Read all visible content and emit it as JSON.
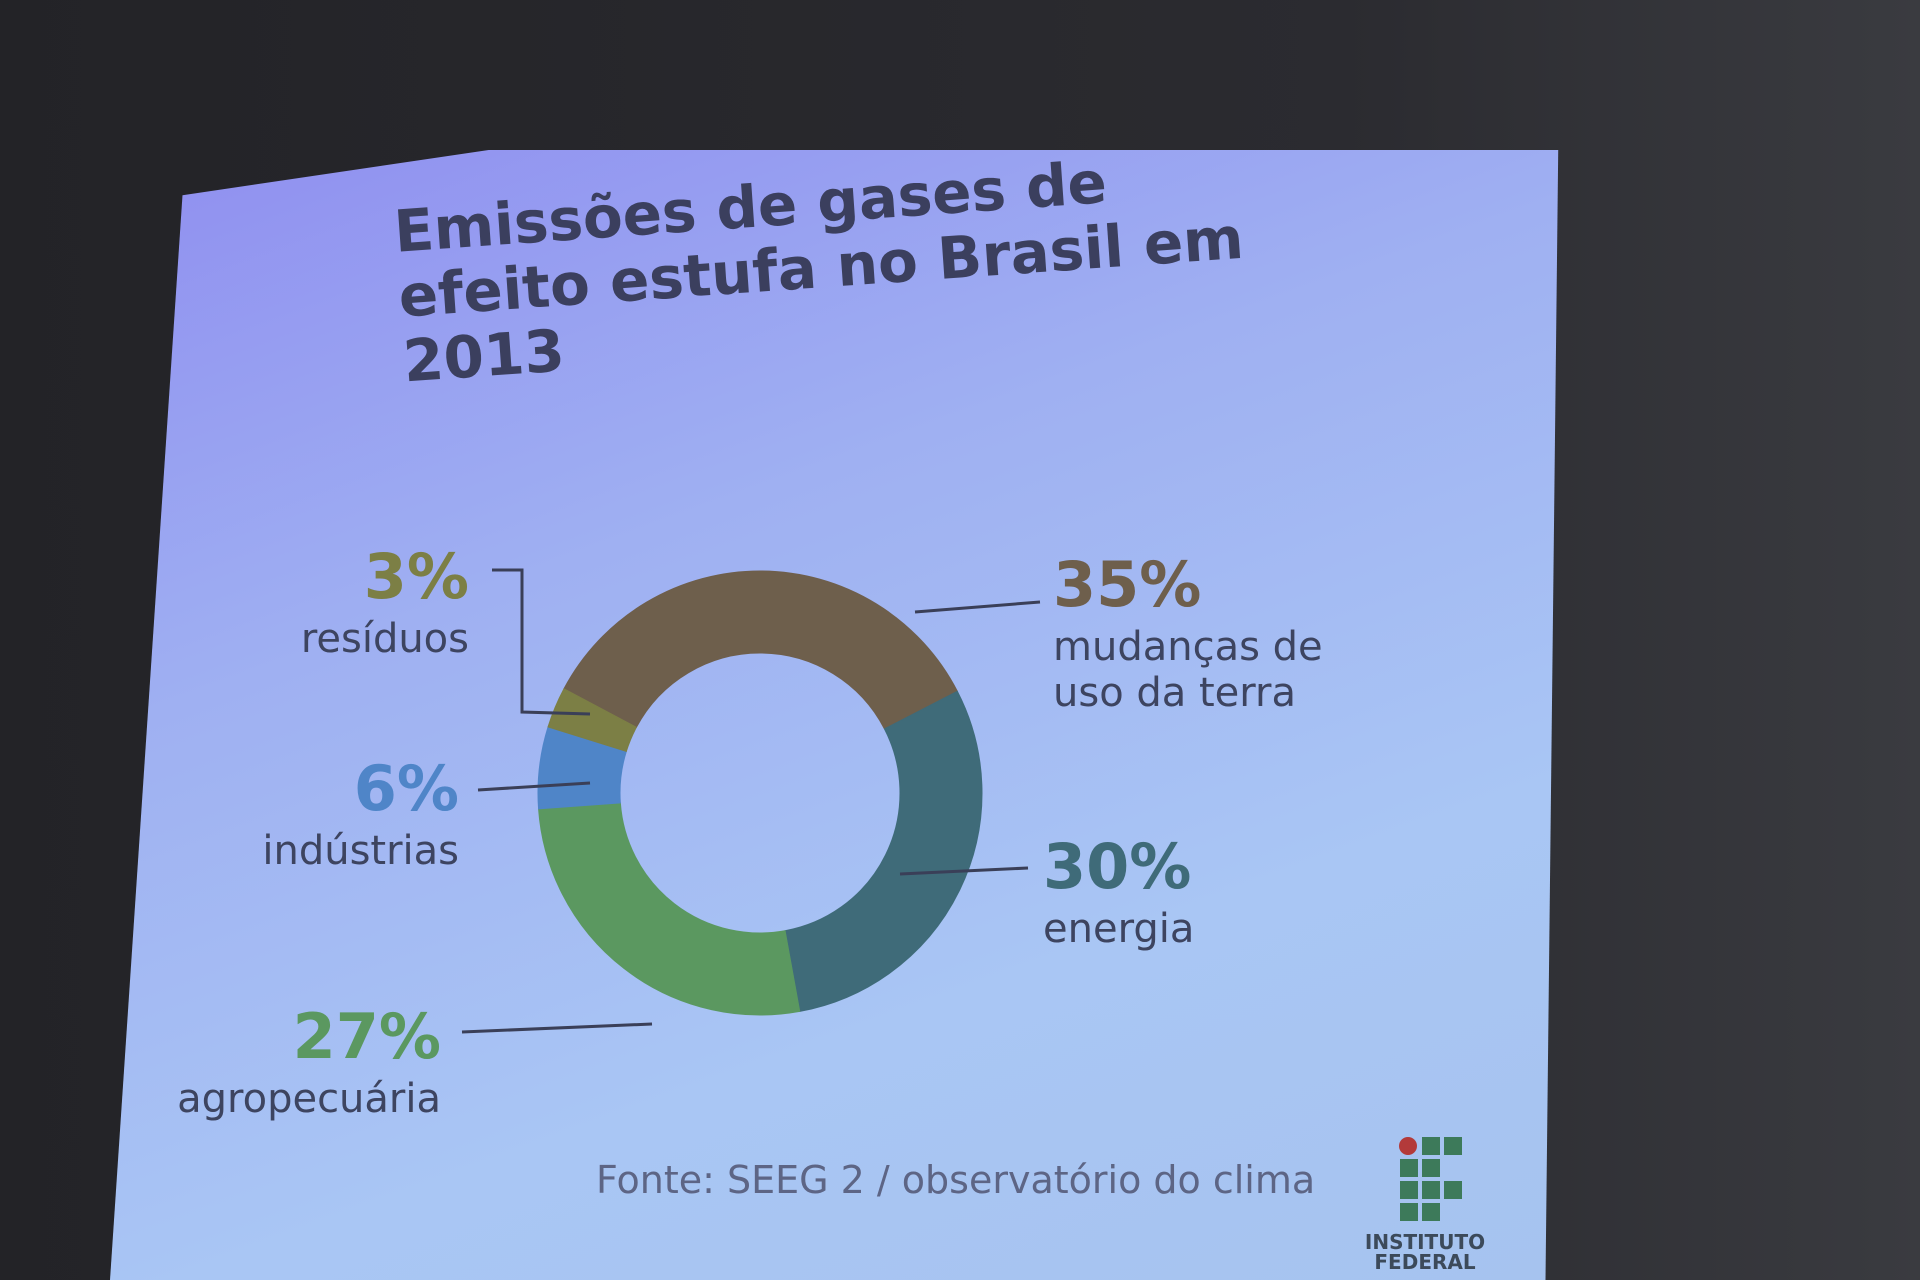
{
  "chart_data": {
    "type": "donut",
    "title": "Emissões de gases de efeito estufa no Brasil em 2013",
    "categories": [
      "mudanças de uso da terra",
      "energia",
      "agropecuária",
      "indústrias",
      "resíduos"
    ],
    "values": [
      35,
      30,
      27,
      6,
      3
    ],
    "value_labels": [
      "35%",
      "30%",
      "27%",
      "6%",
      "3%"
    ],
    "colors": [
      "#6e5f4c",
      "#3f6b79",
      "#5b9860",
      "#4f85c8",
      "#7c7f45"
    ],
    "source": "Fonte: SEEG 2 / observatório do clima"
  },
  "logo": {
    "text": "INSTITUTO FEDERAL"
  }
}
